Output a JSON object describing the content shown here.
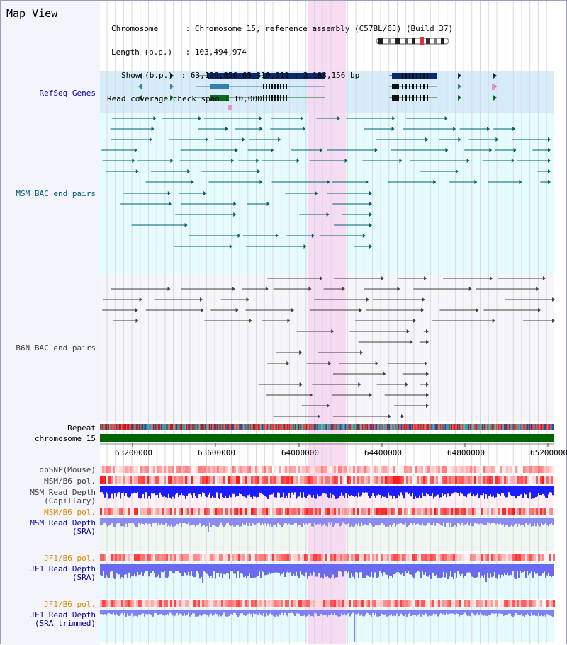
{
  "view_title": "Map View",
  "header": {
    "chromosome_key": "Chromosome",
    "chromosome_value": "Chromosome 15, reference assembly (C57BL/6J) (Build 37)",
    "length_key": "Length (b.p.)",
    "length_value": "103,494,974",
    "show_key": "Show (b.p.)",
    "show_value": "63,126,856-65,310,011 : 2,183,156 bp",
    "coverage_key": "Read coverage check span",
    "coverage_value": "10,000"
  },
  "tracks": {
    "refseq": "RefSeq Genes",
    "msm_bac": "MSM BAC end pairs",
    "b6n_bac": "B6N BAC end pairs",
    "repeat": "Repeat",
    "chromosome": "chromosome 15",
    "dbsnp": "dbSNP(Mouse)",
    "msm_b6_pol_1": "MSM/B6 pol.",
    "msm_read_depth_cap_1": "MSM Read Depth",
    "msm_read_depth_cap_2": "(Capillary)",
    "msm_b6_pol_2": "MSM/B6 pol.",
    "msm_read_depth_sra_1": "MSM Read Depth",
    "msm_read_depth_sra_2": "(SRA)",
    "jf1_b6_pol_1": "JF1/B6 pol.",
    "jf1_read_depth_sra_1": "JF1 Read Depth",
    "jf1_read_depth_sra_2": "(SRA)",
    "jf1_b6_pol_2": "JF1/B6 pol.",
    "jf1_read_depth_trim_1": "JF1 Read Depth",
    "jf1_read_depth_trim_2": "(SRA trimmed)"
  },
  "axis": {
    "ticks": [
      "63200000",
      "63600000",
      "64000000",
      "64400000",
      "64800000",
      "65200000"
    ]
  },
  "colors": {
    "track_blue": "#0000a0",
    "track_teal": "#006070",
    "track_gray": "#404040",
    "track_orange": "#e08a00",
    "highlight": "#f8d8f0",
    "chromosome_green": "#006400",
    "depth_blue": "#1c1cff"
  }
}
